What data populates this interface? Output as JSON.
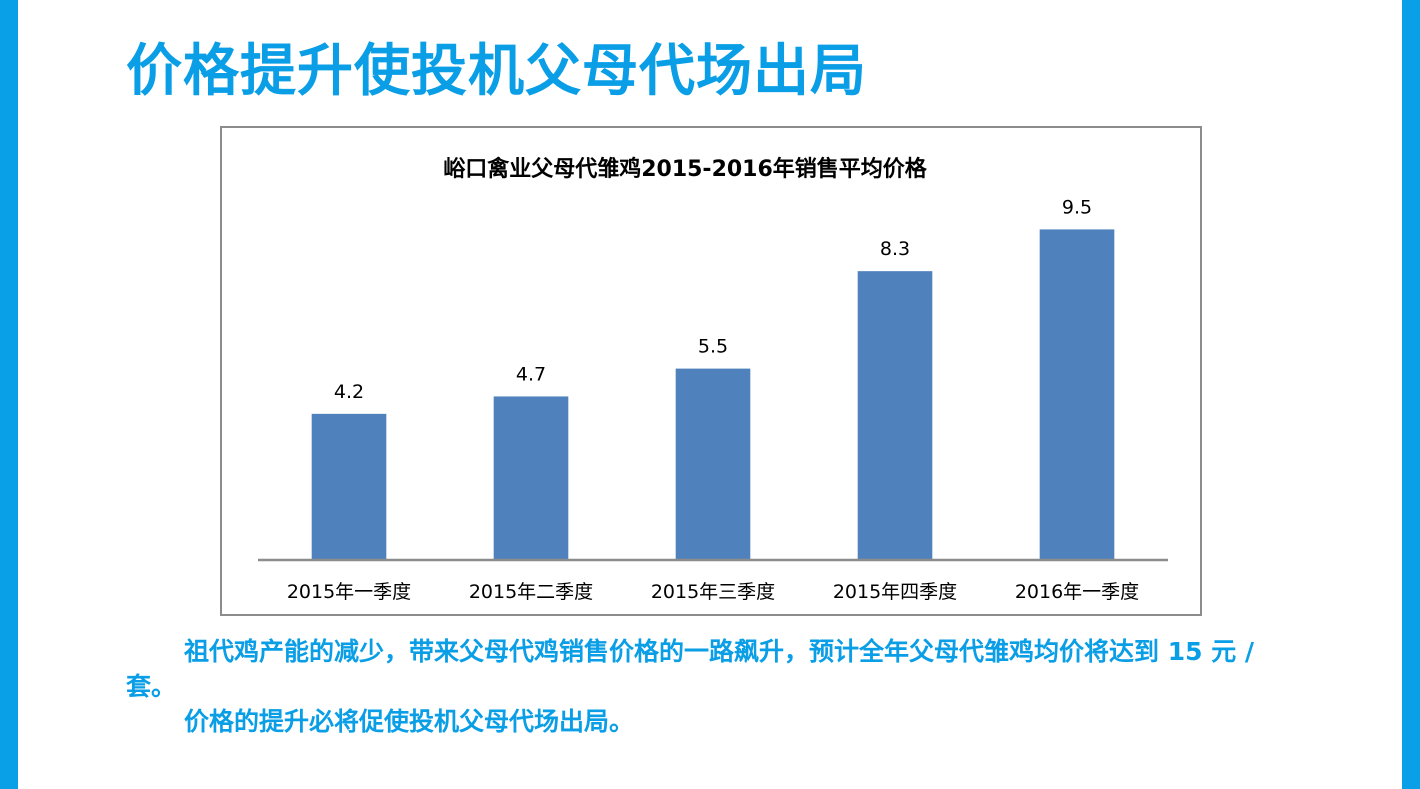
{
  "slide": {
    "title": "价格提升使投机父母代场出局",
    "paragraph_1": "祖代鸡产能的减少，带来父母代鸡销售价格的一路飙升，预计全年父母代雏鸡均价将达到 15 元 / 套。",
    "paragraph_2": "价格的提升必将促使投机父母代场出局。"
  },
  "colors": {
    "accent": "#0a9ee6",
    "bar": "#4f81bd",
    "axis": "#8c8c8c"
  },
  "chart_data": {
    "type": "bar",
    "title": "峪口禽业父母代雏鸡2015-2016年销售平均价格",
    "categories": [
      "2015年一季度",
      "2015年二季度",
      "2015年三季度",
      "2015年四季度",
      "2016年一季度"
    ],
    "values": [
      4.2,
      4.7,
      5.5,
      8.3,
      9.5
    ],
    "value_labels": [
      "4.2",
      "4.7",
      "5.5",
      "8.3",
      "9.5"
    ],
    "xlabel": "",
    "ylabel": "",
    "ylim": [
      0,
      10
    ],
    "grid": false,
    "legend": "none"
  }
}
